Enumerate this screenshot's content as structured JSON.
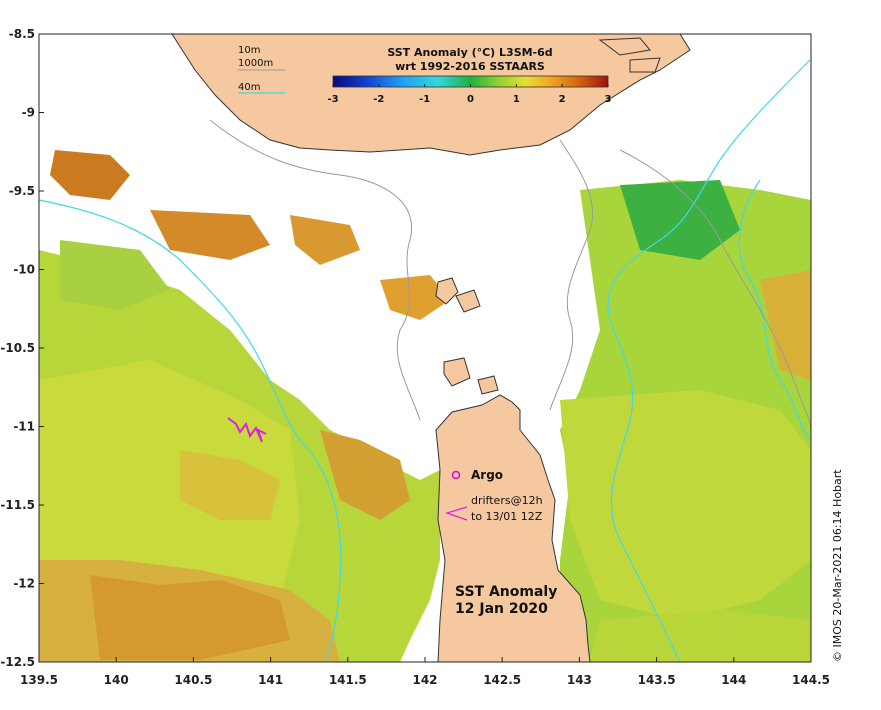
{
  "map": {
    "lon_ticks": [
      "139.5",
      "140",
      "140.5",
      "141",
      "141.5",
      "142",
      "142.5",
      "143",
      "143.5",
      "144",
      "144.5"
    ],
    "lat_ticks": [
      "-8.5",
      "-9",
      "-9.5",
      "-10",
      "-10.5",
      "-11",
      "-11.5",
      "-12",
      "-12.5"
    ],
    "lon_range": [
      139.5,
      144.5
    ],
    "lat_range": [
      -12.5,
      -8.5
    ]
  },
  "colorbar": {
    "title_line1": "SST Anomaly (°C) L3SM-6d",
    "title_line2": "wrt 1992-2016 SSTAARS",
    "ticks": [
      "-3",
      "-2",
      "-1",
      "0",
      "1",
      "2",
      "3"
    ],
    "range": [
      -3,
      3
    ]
  },
  "depth_legend": {
    "items": [
      {
        "label": "10m",
        "color": "#9a9a9a"
      },
      {
        "label": "1000m",
        "color": "#9a9a9a"
      },
      {
        "label": "40m",
        "color": "#40d8e8"
      }
    ]
  },
  "argo": {
    "label": "Argo",
    "marker_color": "#e000e0"
  },
  "drifters": {
    "line1": "drifters@12h",
    "line2": "to 13/01 12Z",
    "color": "#e020e0"
  },
  "title": {
    "line1": "SST Anomaly",
    "line2": "12 Jan 2020"
  },
  "credit": "© IMOS 20-Mar-2021 06:14 Hobart",
  "colors": {
    "land": "#f5c8a0",
    "land_edge": "#333333",
    "ocean_nodata": "#ffffff",
    "contour_40m": "#40d8e8",
    "contour_10m": "#9a9a9a"
  }
}
